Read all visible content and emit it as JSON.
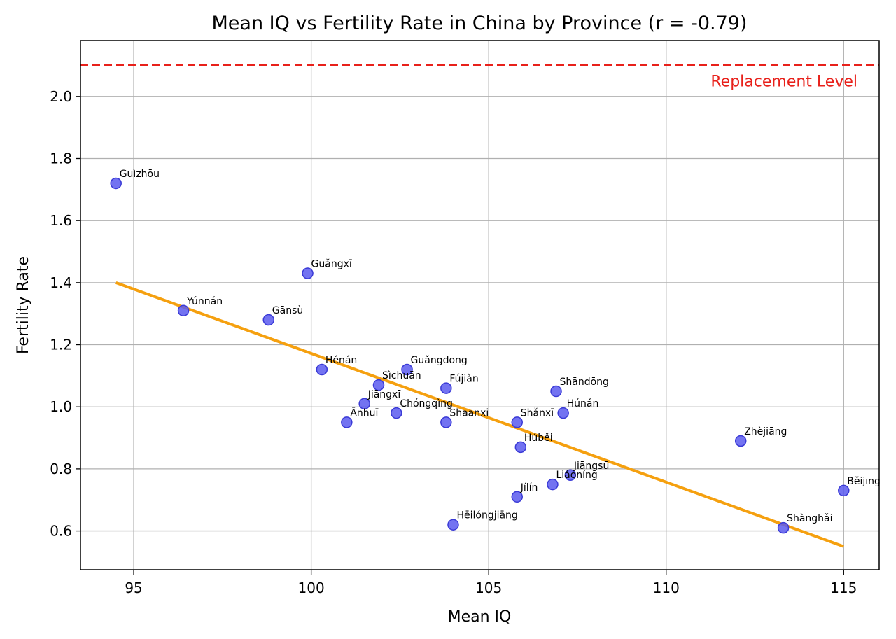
{
  "chart_data": {
    "type": "scatter",
    "title": "Mean IQ vs Fertility Rate in China by Province (r = -0.79)",
    "xlabel": "Mean IQ",
    "ylabel": "Fertility Rate",
    "xlim": [
      93.5,
      116
    ],
    "ylim": [
      0.475,
      2.18
    ],
    "xticks": [
      95,
      100,
      105,
      110,
      115
    ],
    "yticks": [
      0.6,
      0.8,
      1.0,
      1.2,
      1.4,
      1.6,
      1.8,
      2.0
    ],
    "x_tick_labels": [
      "95",
      "100",
      "105",
      "110",
      "115"
    ],
    "y_tick_labels": [
      "0.6",
      "0.8",
      "1.0",
      "1.2",
      "1.4",
      "1.6",
      "1.8",
      "2.0"
    ],
    "grid": true,
    "point_color": "#5b5bef",
    "point_edge_color": "#3a3ad6",
    "points": [
      {
        "label": "Guìzhōu",
        "x": 94.5,
        "y": 1.72
      },
      {
        "label": "Yúnnán",
        "x": 96.4,
        "y": 1.31
      },
      {
        "label": "Gānsù",
        "x": 98.8,
        "y": 1.28
      },
      {
        "label": "Guǎngxī",
        "x": 99.9,
        "y": 1.43
      },
      {
        "label": "Hénán",
        "x": 100.3,
        "y": 1.12
      },
      {
        "label": "Ānhuī",
        "x": 101.0,
        "y": 0.95
      },
      {
        "label": "Jiāngxī",
        "x": 101.5,
        "y": 1.01
      },
      {
        "label": "Sìchuān",
        "x": 101.9,
        "y": 1.07
      },
      {
        "label": "Chóngqìng",
        "x": 102.4,
        "y": 0.98
      },
      {
        "label": "Guǎngdōng",
        "x": 102.7,
        "y": 1.12
      },
      {
        "label": "Fújiàn",
        "x": 103.8,
        "y": 1.06
      },
      {
        "label": "Shaanxi",
        "x": 103.8,
        "y": 0.95
      },
      {
        "label": "Hēilóngjiāng",
        "x": 104.0,
        "y": 0.62
      },
      {
        "label": "Jílín",
        "x": 105.8,
        "y": 0.71
      },
      {
        "label": "Shǎnxī",
        "x": 105.8,
        "y": 0.95
      },
      {
        "label": "Húběi",
        "x": 105.9,
        "y": 0.87
      },
      {
        "label": "Liáoníng",
        "x": 106.8,
        "y": 0.75
      },
      {
        "label": "Shāndōng",
        "x": 106.9,
        "y": 1.05
      },
      {
        "label": "Húnán",
        "x": 107.1,
        "y": 0.98
      },
      {
        "label": "Jiāngsū",
        "x": 107.3,
        "y": 0.78
      },
      {
        "label": "Zhèjiāng",
        "x": 112.1,
        "y": 0.89
      },
      {
        "label": "Shànghǎi",
        "x": 113.3,
        "y": 0.61
      },
      {
        "label": "Běijīng",
        "x": 115.0,
        "y": 0.73
      }
    ],
    "trend_line": {
      "x": [
        94.5,
        115.0
      ],
      "y": [
        1.4,
        0.55
      ],
      "color": "#f5a00f"
    },
    "reference_line": {
      "y": 2.1,
      "label": "Replacement Level",
      "color": "#e8211b",
      "style": "dashed"
    }
  }
}
